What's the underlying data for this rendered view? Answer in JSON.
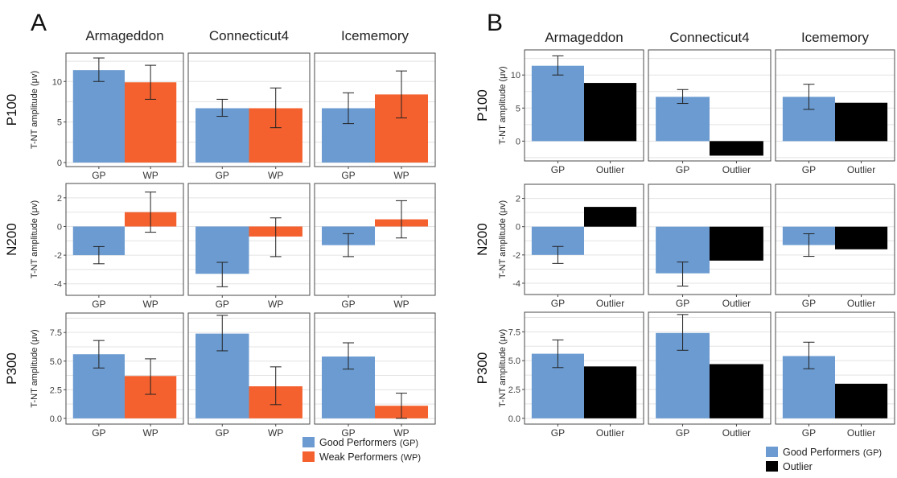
{
  "panels": [
    "A",
    "B"
  ],
  "games": [
    "Armageddon",
    "Connecticut4",
    "Icememory"
  ],
  "components": [
    "P100",
    "N200",
    "P300"
  ],
  "ylabel": "T-NT amplitude (μv)",
  "colors": {
    "gp": "#6b9bd1",
    "wp": "#f4612f",
    "outlier": "#000000",
    "grid": "#e3e3e3",
    "frame": "#4a4a4a"
  },
  "legends": {
    "A": [
      {
        "label": "Good Performers",
        "abbr": "(GP)",
        "color": "#6b9bd1"
      },
      {
        "label": "Weak Performers",
        "abbr": "(WP)",
        "color": "#f4612f"
      }
    ],
    "B": [
      {
        "label": "Good Performers",
        "abbr": "(GP)",
        "color": "#6b9bd1"
      },
      {
        "label": "Outlier",
        "abbr": "",
        "color": "#000000"
      }
    ]
  },
  "chart_data": [
    {
      "type": "bar",
      "panel": "A",
      "categories": [
        "GP",
        "WP"
      ],
      "ylabel": "T-NT amplitude (μv)",
      "rows": [
        {
          "component": "P100",
          "ylim": [
            -0.5,
            13.5
          ],
          "ticks": [
            0,
            5,
            10
          ],
          "tick_labels": [
            "0",
            "5",
            "10"
          ],
          "facets": [
            {
              "game": "Armageddon",
              "values": [
                11.4,
                9.9
              ],
              "errors": [
                [
                  10.0,
                  12.9
                ],
                [
                  7.8,
                  12.0
                ]
              ]
            },
            {
              "game": "Connecticut4",
              "values": [
                6.7,
                6.7
              ],
              "errors": [
                [
                  5.7,
                  7.8
                ],
                [
                  4.3,
                  9.2
                ]
              ]
            },
            {
              "game": "Icememory",
              "values": [
                6.7,
                8.4
              ],
              "errors": [
                [
                  4.8,
                  8.6
                ],
                [
                  5.5,
                  11.3
                ]
              ]
            }
          ]
        },
        {
          "component": "N200",
          "ylim": [
            -4.8,
            3.0
          ],
          "ticks": [
            -4,
            -2,
            0,
            2
          ],
          "tick_labels": [
            "-4",
            "-2",
            "0",
            "2"
          ],
          "facets": [
            {
              "game": "Armageddon",
              "values": [
                -2.0,
                1.0
              ],
              "errors": [
                [
                  -2.6,
                  -1.4
                ],
                [
                  -0.4,
                  2.4
                ]
              ]
            },
            {
              "game": "Connecticut4",
              "values": [
                -3.3,
                -0.7
              ],
              "errors": [
                [
                  -4.2,
                  -2.5
                ],
                [
                  -2.1,
                  0.6
                ]
              ]
            },
            {
              "game": "Icememory",
              "values": [
                -1.3,
                0.5
              ],
              "errors": [
                [
                  -2.1,
                  -0.5
                ],
                [
                  -0.8,
                  1.8
                ]
              ]
            }
          ]
        },
        {
          "component": "P300",
          "ylim": [
            -0.5,
            9.2
          ],
          "ticks": [
            0,
            2.5,
            5,
            7.5
          ],
          "tick_labels": [
            "0.0",
            "2.5",
            "5.0",
            "7.5"
          ],
          "facets": [
            {
              "game": "Armageddon",
              "values": [
                5.6,
                3.7
              ],
              "errors": [
                [
                  4.4,
                  6.8
                ],
                [
                  2.1,
                  5.2
                ]
              ]
            },
            {
              "game": "Connecticut4",
              "values": [
                7.4,
                2.8
              ],
              "errors": [
                [
                  5.9,
                  9.0
                ],
                [
                  1.2,
                  4.5
                ]
              ]
            },
            {
              "game": "Icememory",
              "values": [
                5.4,
                1.1
              ],
              "errors": [
                [
                  4.3,
                  6.6
                ],
                [
                  0.0,
                  2.2
                ]
              ]
            }
          ]
        }
      ]
    },
    {
      "type": "bar",
      "panel": "B",
      "categories": [
        "GP",
        "Outlier"
      ],
      "ylabel": "T-NT amplitude (μv)",
      "rows": [
        {
          "component": "P100",
          "ylim": [
            -3.0,
            13.8
          ],
          "ticks": [
            0,
            5,
            10
          ],
          "tick_labels": [
            "0",
            "5",
            "10"
          ],
          "facets": [
            {
              "game": "Armageddon",
              "values": [
                11.4,
                8.8
              ],
              "errors": [
                [
                  10.0,
                  12.9
                ],
                null
              ]
            },
            {
              "game": "Connecticut4",
              "values": [
                6.7,
                -2.2
              ],
              "errors": [
                [
                  5.7,
                  7.8
                ],
                null
              ]
            },
            {
              "game": "Icememory",
              "values": [
                6.7,
                5.8
              ],
              "errors": [
                [
                  4.8,
                  8.6
                ],
                null
              ]
            }
          ]
        },
        {
          "component": "N200",
          "ylim": [
            -4.8,
            3.0
          ],
          "ticks": [
            -4,
            -2,
            0,
            2
          ],
          "tick_labels": [
            "-4",
            "-2",
            "0",
            "2"
          ],
          "facets": [
            {
              "game": "Armageddon",
              "values": [
                -2.0,
                1.4
              ],
              "errors": [
                [
                  -2.6,
                  -1.4
                ],
                null
              ]
            },
            {
              "game": "Connecticut4",
              "values": [
                -3.3,
                -2.4
              ],
              "errors": [
                [
                  -4.2,
                  -2.5
                ],
                null
              ]
            },
            {
              "game": "Icememory",
              "values": [
                -1.3,
                -1.6
              ],
              "errors": [
                [
                  -2.1,
                  -0.5
                ],
                null
              ]
            }
          ]
        },
        {
          "component": "P300",
          "ylim": [
            -0.5,
            9.2
          ],
          "ticks": [
            0,
            2.5,
            5,
            7.5
          ],
          "tick_labels": [
            "0.0",
            "2.5",
            "5.0",
            "7.5"
          ],
          "facets": [
            {
              "game": "Armageddon",
              "values": [
                5.6,
                4.5
              ],
              "errors": [
                [
                  4.4,
                  6.8
                ],
                null
              ]
            },
            {
              "game": "Connecticut4",
              "values": [
                7.4,
                4.7
              ],
              "errors": [
                [
                  5.9,
                  9.0
                ],
                null
              ]
            },
            {
              "game": "Icememory",
              "values": [
                5.4,
                3.0
              ],
              "errors": [
                [
                  4.3,
                  6.6
                ],
                null
              ]
            }
          ]
        }
      ]
    }
  ]
}
